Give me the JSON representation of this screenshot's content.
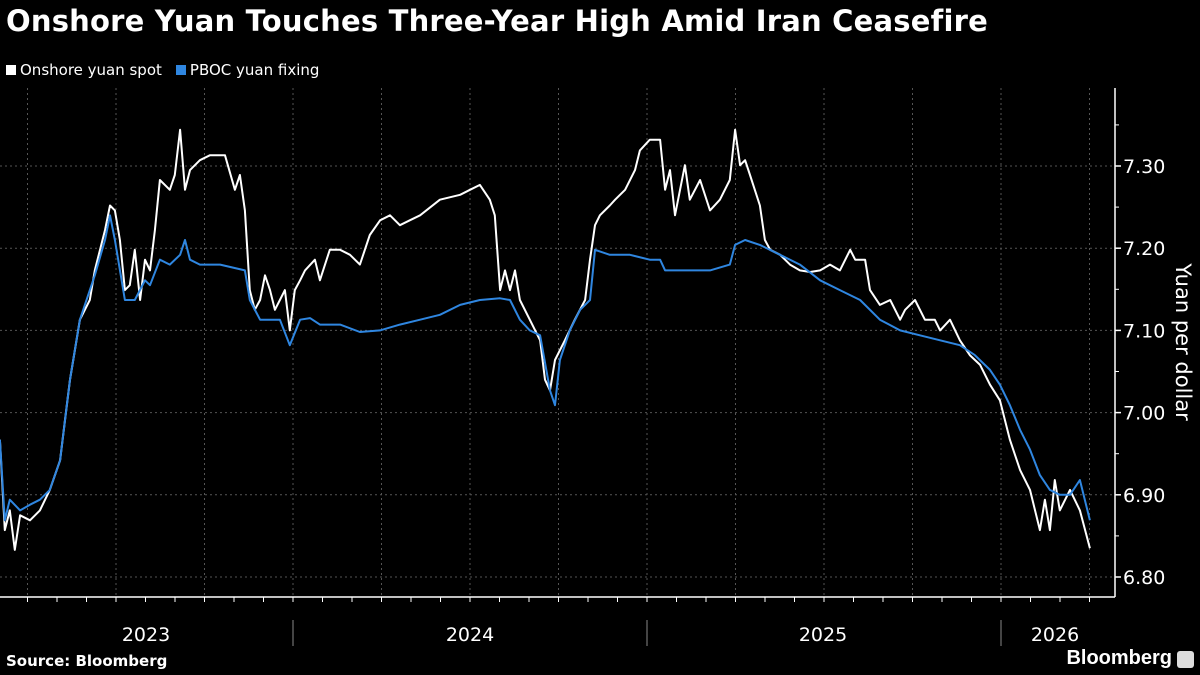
{
  "chart_data": {
    "type": "line",
    "title": "Onshore Yuan Touches Three-Year High Amid Iran Ceasefire",
    "xlabel": "",
    "ylabel": "Yuan per dollar",
    "ylim": [
      6.775,
      7.39
    ],
    "xlim": [
      2023.172,
      2026.34
    ],
    "yticks": [
      "6.80",
      "6.90",
      "7.00",
      "7.10",
      "7.20",
      "7.30"
    ],
    "xticks": [
      "2023",
      "2024",
      "2025",
      "2026"
    ],
    "legend_position": "top-left",
    "grid": true,
    "source": "Source: Bloomberg",
    "brand": "Bloomberg",
    "series": [
      {
        "name": "Onshore yuan spot",
        "color": "#ffffff",
        "points": [
          [
            2023.172,
            6.967
          ],
          [
            2023.186,
            6.857
          ],
          [
            2023.2,
            6.881
          ],
          [
            2023.214,
            6.833
          ],
          [
            2023.229,
            6.875
          ],
          [
            2023.257,
            6.869
          ],
          [
            2023.285,
            6.881
          ],
          [
            2023.313,
            6.906
          ],
          [
            2023.342,
            6.942
          ],
          [
            2023.356,
            6.991
          ],
          [
            2023.37,
            7.04
          ],
          [
            2023.398,
            7.113
          ],
          [
            2023.426,
            7.137
          ],
          [
            2023.44,
            7.173
          ],
          [
            2023.469,
            7.222
          ],
          [
            2023.483,
            7.252
          ],
          [
            2023.497,
            7.246
          ],
          [
            2023.511,
            7.21
          ],
          [
            2023.525,
            7.149
          ],
          [
            2023.539,
            7.155
          ],
          [
            2023.553,
            7.198
          ],
          [
            2023.568,
            7.137
          ],
          [
            2023.582,
            7.186
          ],
          [
            2023.596,
            7.173
          ],
          [
            2023.61,
            7.222
          ],
          [
            2023.624,
            7.283
          ],
          [
            2023.652,
            7.271
          ],
          [
            2023.666,
            7.289
          ],
          [
            2023.681,
            7.344
          ],
          [
            2023.695,
            7.271
          ],
          [
            2023.709,
            7.295
          ],
          [
            2023.737,
            7.307
          ],
          [
            2023.765,
            7.313
          ],
          [
            2023.808,
            7.313
          ],
          [
            2023.836,
            7.271
          ],
          [
            2023.85,
            7.289
          ],
          [
            2023.864,
            7.246
          ],
          [
            2023.878,
            7.149
          ],
          [
            2023.892,
            7.125
          ],
          [
            2023.907,
            7.137
          ],
          [
            2023.921,
            7.167
          ],
          [
            2023.935,
            7.149
          ],
          [
            2023.949,
            7.125
          ],
          [
            2023.963,
            7.137
          ],
          [
            2023.977,
            7.149
          ],
          [
            2023.991,
            7.1
          ],
          [
            2024.005,
            7.149
          ],
          [
            2024.02,
            7.161
          ],
          [
            2024.034,
            7.173
          ],
          [
            2024.062,
            7.186
          ],
          [
            2024.076,
            7.161
          ],
          [
            2024.104,
            7.198
          ],
          [
            2024.133,
            7.198
          ],
          [
            2024.161,
            7.192
          ],
          [
            2024.189,
            7.18
          ],
          [
            2024.217,
            7.216
          ],
          [
            2024.246,
            7.234
          ],
          [
            2024.274,
            7.24
          ],
          [
            2024.302,
            7.228
          ],
          [
            2024.33,
            7.234
          ],
          [
            2024.359,
            7.24
          ],
          [
            2024.415,
            7.259
          ],
          [
            2024.472,
            7.265
          ],
          [
            2024.5,
            7.271
          ],
          [
            2024.528,
            7.277
          ],
          [
            2024.556,
            7.259
          ],
          [
            2024.57,
            7.24
          ],
          [
            2024.585,
            7.149
          ],
          [
            2024.599,
            7.173
          ],
          [
            2024.613,
            7.149
          ],
          [
            2024.627,
            7.173
          ],
          [
            2024.641,
            7.137
          ],
          [
            2024.669,
            7.113
          ],
          [
            2024.698,
            7.088
          ],
          [
            2024.712,
            7.04
          ],
          [
            2024.726,
            7.027
          ],
          [
            2024.74,
            7.064
          ],
          [
            2024.768,
            7.088
          ],
          [
            2024.796,
            7.113
          ],
          [
            2024.825,
            7.137
          ],
          [
            2024.839,
            7.186
          ],
          [
            2024.853,
            7.228
          ],
          [
            2024.867,
            7.24
          ],
          [
            2024.895,
            7.252
          ],
          [
            2024.91,
            7.259
          ],
          [
            2024.938,
            7.271
          ],
          [
            2024.966,
            7.295
          ],
          [
            2024.98,
            7.319
          ],
          [
            2025.008,
            7.332
          ],
          [
            2025.037,
            7.332
          ],
          [
            2025.051,
            7.271
          ],
          [
            2025.065,
            7.295
          ],
          [
            2025.079,
            7.24
          ],
          [
            2025.107,
            7.301
          ],
          [
            2025.121,
            7.259
          ],
          [
            2025.15,
            7.283
          ],
          [
            2025.178,
            7.246
          ],
          [
            2025.206,
            7.259
          ],
          [
            2025.234,
            7.283
          ],
          [
            2025.249,
            7.344
          ],
          [
            2025.263,
            7.301
          ],
          [
            2025.277,
            7.307
          ],
          [
            2025.291,
            7.289
          ],
          [
            2025.319,
            7.252
          ],
          [
            2025.333,
            7.21
          ],
          [
            2025.348,
            7.198
          ],
          [
            2025.376,
            7.192
          ],
          [
            2025.404,
            7.18
          ],
          [
            2025.432,
            7.173
          ],
          [
            2025.461,
            7.171
          ],
          [
            2025.489,
            7.173
          ],
          [
            2025.517,
            7.18
          ],
          [
            2025.545,
            7.173
          ],
          [
            2025.574,
            7.198
          ],
          [
            2025.588,
            7.186
          ],
          [
            2025.616,
            7.186
          ],
          [
            2025.63,
            7.149
          ],
          [
            2025.658,
            7.131
          ],
          [
            2025.687,
            7.137
          ],
          [
            2025.715,
            7.113
          ],
          [
            2025.729,
            7.125
          ],
          [
            2025.757,
            7.137
          ],
          [
            2025.785,
            7.113
          ],
          [
            2025.813,
            7.113
          ],
          [
            2025.828,
            7.1
          ],
          [
            2025.856,
            7.113
          ],
          [
            2025.884,
            7.088
          ],
          [
            2025.912,
            7.07
          ],
          [
            2025.941,
            7.058
          ],
          [
            2025.969,
            7.034
          ],
          [
            2025.997,
            7.015
          ],
          [
            2026.025,
            6.967
          ],
          [
            2026.054,
            6.93
          ],
          [
            2026.082,
            6.906
          ],
          [
            2026.11,
            6.857
          ],
          [
            2026.124,
            6.894
          ],
          [
            2026.138,
            6.857
          ],
          [
            2026.152,
            6.918
          ],
          [
            2026.166,
            6.881
          ],
          [
            2026.195,
            6.906
          ],
          [
            2026.223,
            6.881
          ],
          [
            2026.251,
            6.835
          ]
        ]
      },
      {
        "name": "PBOC yuan fixing",
        "color": "#2f86e0",
        "points": [
          [
            2023.172,
            6.967
          ],
          [
            2023.186,
            6.869
          ],
          [
            2023.2,
            6.894
          ],
          [
            2023.229,
            6.881
          ],
          [
            2023.257,
            6.888
          ],
          [
            2023.285,
            6.894
          ],
          [
            2023.313,
            6.906
          ],
          [
            2023.342,
            6.942
          ],
          [
            2023.37,
            7.04
          ],
          [
            2023.398,
            7.113
          ],
          [
            2023.44,
            7.167
          ],
          [
            2023.469,
            7.21
          ],
          [
            2023.483,
            7.24
          ],
          [
            2023.497,
            7.21
          ],
          [
            2023.525,
            7.137
          ],
          [
            2023.553,
            7.137
          ],
          [
            2023.582,
            7.161
          ],
          [
            2023.596,
            7.155
          ],
          [
            2023.624,
            7.186
          ],
          [
            2023.652,
            7.18
          ],
          [
            2023.681,
            7.192
          ],
          [
            2023.695,
            7.21
          ],
          [
            2023.709,
            7.186
          ],
          [
            2023.737,
            7.18
          ],
          [
            2023.794,
            7.18
          ],
          [
            2023.864,
            7.173
          ],
          [
            2023.878,
            7.137
          ],
          [
            2023.907,
            7.113
          ],
          [
            2023.935,
            7.113
          ],
          [
            2023.963,
            7.113
          ],
          [
            2023.991,
            7.082
          ],
          [
            2024.02,
            7.113
          ],
          [
            2024.048,
            7.115
          ],
          [
            2024.076,
            7.107
          ],
          [
            2024.133,
            7.107
          ],
          [
            2024.189,
            7.098
          ],
          [
            2024.246,
            7.1
          ],
          [
            2024.302,
            7.107
          ],
          [
            2024.359,
            7.113
          ],
          [
            2024.415,
            7.119
          ],
          [
            2024.472,
            7.131
          ],
          [
            2024.528,
            7.137
          ],
          [
            2024.585,
            7.139
          ],
          [
            2024.613,
            7.137
          ],
          [
            2024.641,
            7.113
          ],
          [
            2024.669,
            7.1
          ],
          [
            2024.698,
            7.094
          ],
          [
            2024.726,
            7.027
          ],
          [
            2024.74,
            7.009
          ],
          [
            2024.754,
            7.064
          ],
          [
            2024.782,
            7.1
          ],
          [
            2024.811,
            7.125
          ],
          [
            2024.839,
            7.137
          ],
          [
            2024.853,
            7.198
          ],
          [
            2024.895,
            7.192
          ],
          [
            2024.952,
            7.192
          ],
          [
            2025.008,
            7.186
          ],
          [
            2025.037,
            7.186
          ],
          [
            2025.051,
            7.173
          ],
          [
            2025.121,
            7.173
          ],
          [
            2025.178,
            7.173
          ],
          [
            2025.234,
            7.18
          ],
          [
            2025.249,
            7.204
          ],
          [
            2025.277,
            7.21
          ],
          [
            2025.319,
            7.204
          ],
          [
            2025.376,
            7.192
          ],
          [
            2025.432,
            7.18
          ],
          [
            2025.489,
            7.161
          ],
          [
            2025.545,
            7.149
          ],
          [
            2025.602,
            7.137
          ],
          [
            2025.658,
            7.113
          ],
          [
            2025.715,
            7.1
          ],
          [
            2025.771,
            7.094
          ],
          [
            2025.828,
            7.088
          ],
          [
            2025.884,
            7.082
          ],
          [
            2025.926,
            7.07
          ],
          [
            2025.969,
            7.052
          ],
          [
            2025.997,
            7.034
          ],
          [
            2026.025,
            7.009
          ],
          [
            2026.054,
            6.979
          ],
          [
            2026.082,
            6.955
          ],
          [
            2026.11,
            6.924
          ],
          [
            2026.138,
            6.906
          ],
          [
            2026.166,
            6.9
          ],
          [
            2026.195,
            6.9
          ],
          [
            2026.223,
            6.918
          ],
          [
            2026.251,
            6.869
          ]
        ]
      }
    ]
  }
}
